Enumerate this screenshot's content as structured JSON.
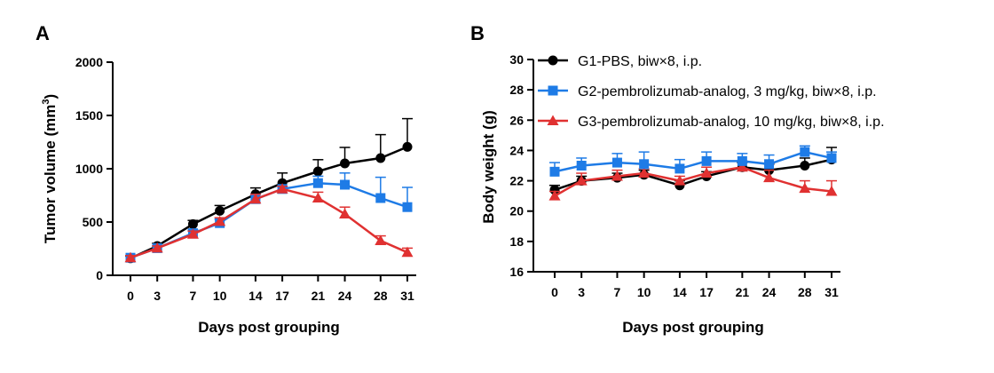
{
  "chart_data": [
    {
      "panel": "A",
      "type": "line",
      "xlabel": "Days post grouping",
      "ylabel_main": "Tumor volume (mm",
      "ylabel_sup": "3",
      "ylabel_end": ")",
      "categories": [
        "0",
        "3",
        "7",
        "10",
        "14",
        "17",
        "21",
        "24",
        "28",
        "31"
      ],
      "x": [
        0,
        3,
        7,
        10,
        14,
        17,
        21,
        24,
        28,
        31
      ],
      "ylim": [
        0,
        2000
      ],
      "yticks": [
        0,
        500,
        1000,
        1500,
        2000
      ],
      "series": [
        {
          "key": "G1",
          "color": "#000000",
          "marker": "circle",
          "values": [
            160,
            275,
            480,
            605,
            760,
            865,
            975,
            1050,
            1100,
            1205
          ],
          "err": [
            20,
            25,
            35,
            50,
            60,
            95,
            110,
            150,
            220,
            265
          ]
        },
        {
          "key": "G2",
          "color": "#1e7be6",
          "marker": "square",
          "values": [
            165,
            255,
            395,
            490,
            715,
            810,
            865,
            850,
            725,
            640
          ],
          "err": [
            20,
            20,
            30,
            35,
            45,
            25,
            65,
            110,
            195,
            185
          ]
        },
        {
          "key": "G3",
          "color": "#e03131",
          "marker": "triangle",
          "values": [
            165,
            255,
            385,
            505,
            715,
            810,
            725,
            575,
            325,
            215
          ],
          "err": [
            20,
            20,
            30,
            35,
            45,
            25,
            55,
            65,
            45,
            40
          ]
        }
      ]
    },
    {
      "panel": "B",
      "type": "line",
      "xlabel": "Days post grouping",
      "ylabel": "Body weight (g)",
      "categories": [
        "0",
        "3",
        "7",
        "10",
        "14",
        "17",
        "21",
        "24",
        "28",
        "31"
      ],
      "x": [
        0,
        3,
        7,
        10,
        14,
        17,
        21,
        24,
        28,
        31
      ],
      "ylim": [
        16,
        30
      ],
      "yticks": [
        16,
        18,
        20,
        22,
        24,
        26,
        28,
        30
      ],
      "legend_position": "top",
      "series": [
        {
          "key": "G1",
          "name": "G1-PBS, biw×8, i.p.",
          "color": "#000000",
          "marker": "circle",
          "values": [
            21.4,
            22.0,
            22.2,
            22.4,
            21.7,
            22.3,
            22.9,
            22.7,
            23.0,
            23.4
          ],
          "err": [
            0.3,
            0.3,
            0.3,
            0.3,
            0.3,
            0.3,
            0.3,
            0.4,
            0.5,
            0.8
          ]
        },
        {
          "key": "G2",
          "name": "G2-pembrolizumab-analog, 3 mg/kg, biw×8, i.p.",
          "color": "#1e7be6",
          "marker": "square",
          "values": [
            22.6,
            23.0,
            23.2,
            23.1,
            22.8,
            23.3,
            23.3,
            23.1,
            23.9,
            23.5
          ],
          "err": [
            0.6,
            0.5,
            0.6,
            0.8,
            0.6,
            0.6,
            0.5,
            0.6,
            0.4,
            0.4
          ]
        },
        {
          "key": "G3",
          "name": "G3-pembrolizumab-analog, 10 mg/kg, biw×8, i.p.",
          "color": "#e03131",
          "marker": "triangle",
          "values": [
            21.0,
            22.0,
            22.3,
            22.5,
            22.0,
            22.5,
            22.9,
            22.2,
            21.5,
            21.3
          ],
          "err": [
            0.3,
            0.5,
            0.4,
            0.3,
            0.3,
            0.4,
            0.4,
            0.5,
            0.5,
            0.7
          ]
        }
      ]
    }
  ]
}
